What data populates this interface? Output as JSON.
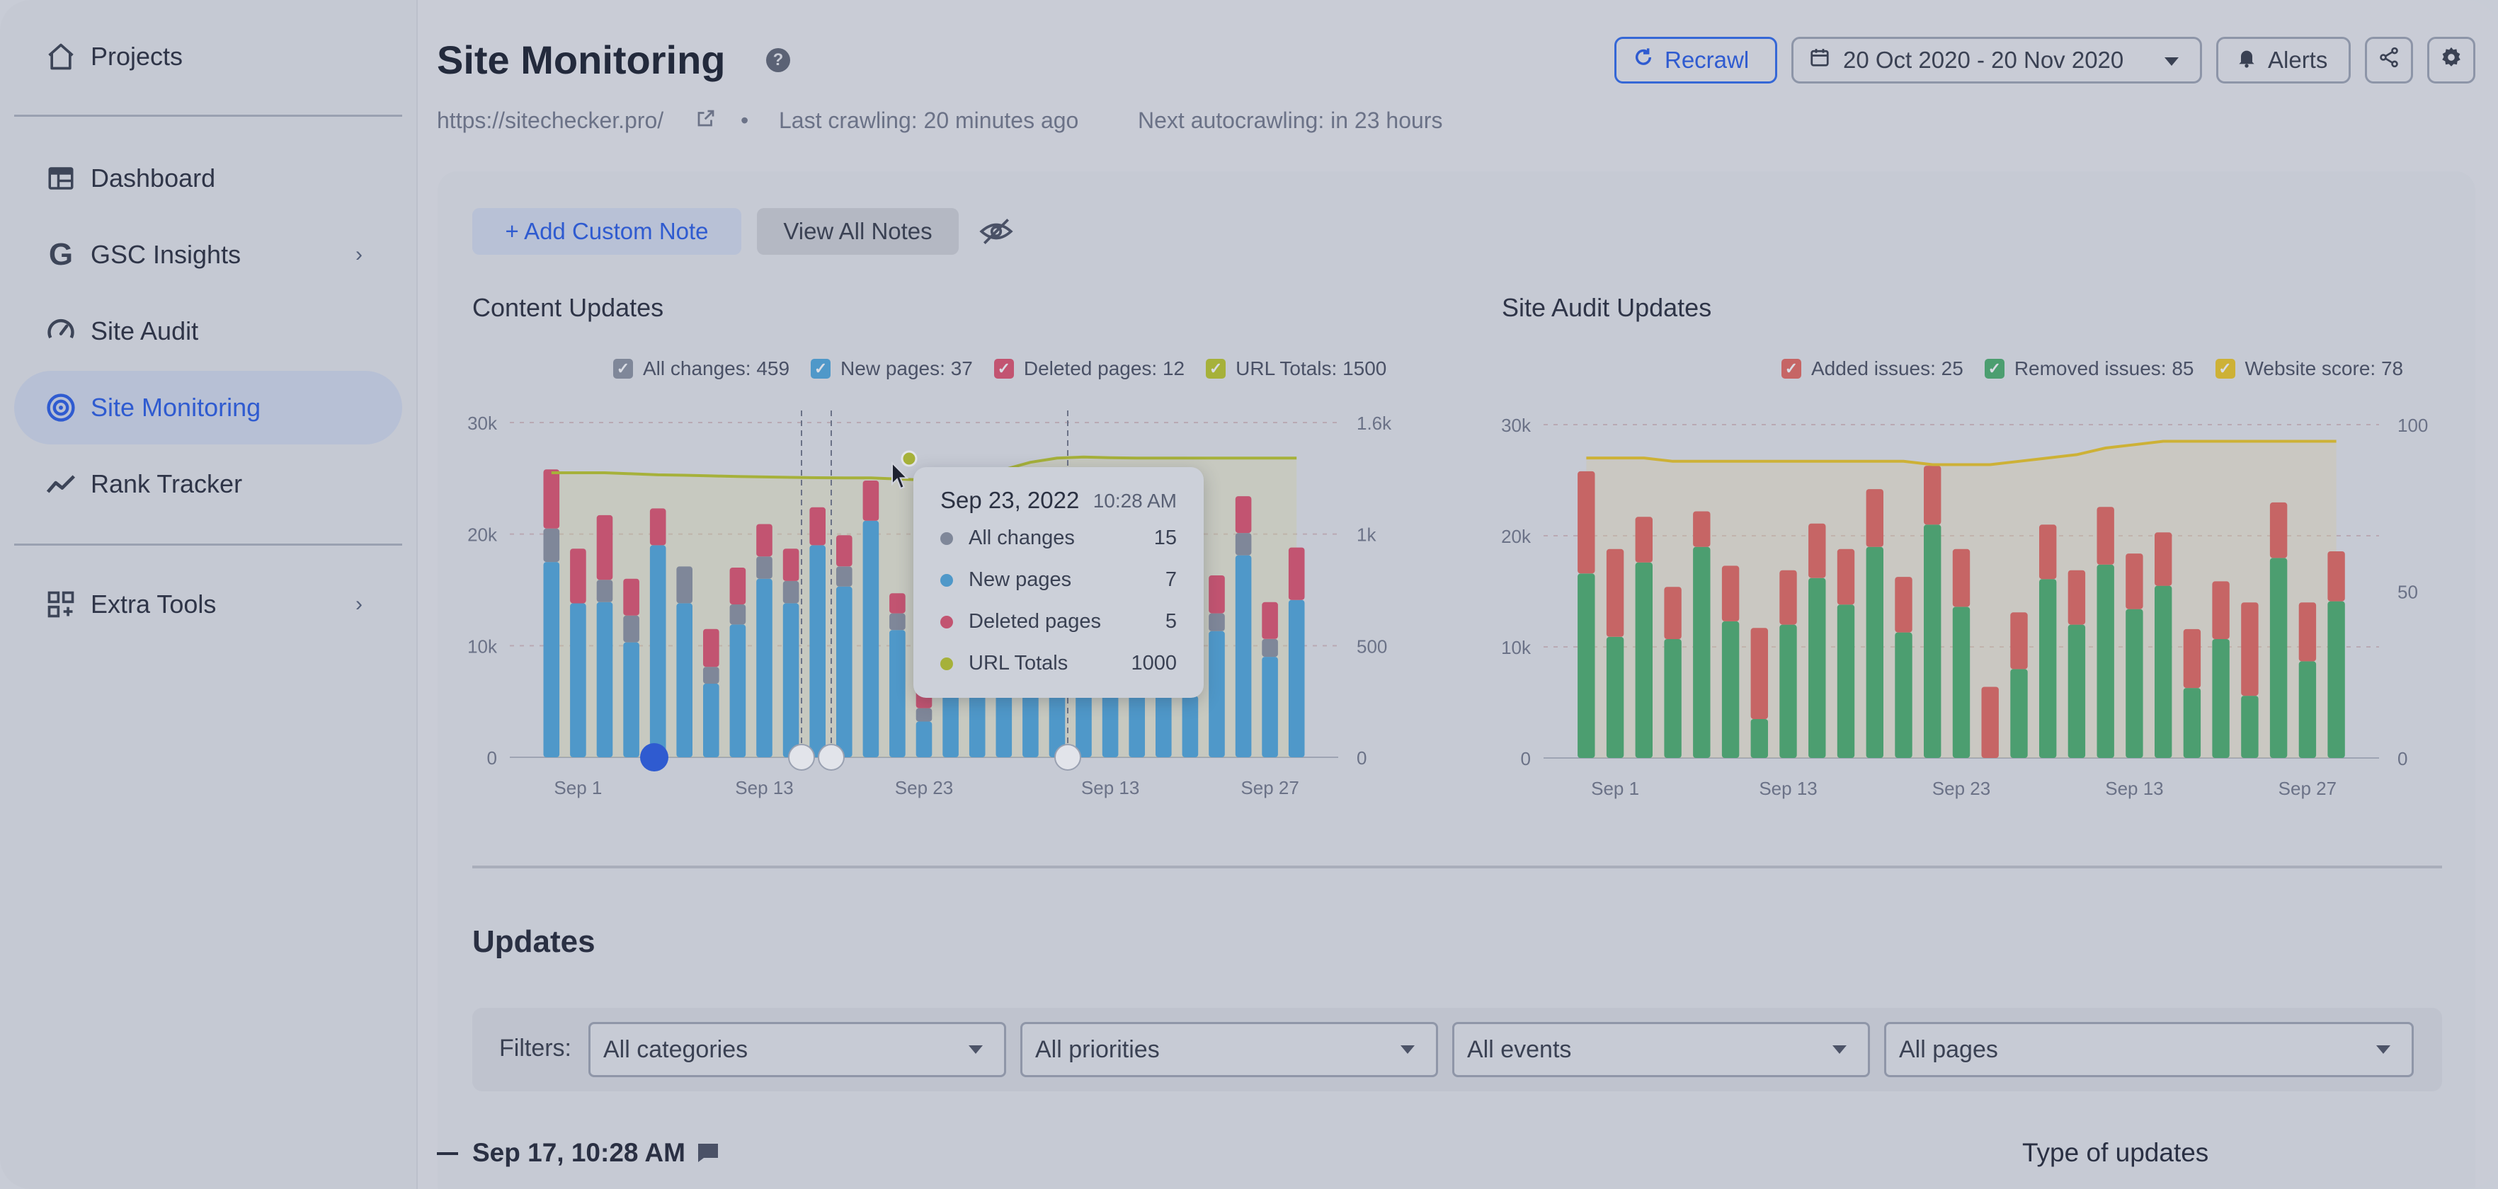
{
  "sidebar": {
    "projects": "Projects",
    "items": [
      {
        "label": "Dashboard"
      },
      {
        "label": "GSC Insights"
      },
      {
        "label": "Site Audit"
      },
      {
        "label": "Site Monitoring"
      },
      {
        "label": "Rank Tracker"
      }
    ],
    "extra_tools": "Extra Tools"
  },
  "header": {
    "title": "Site Monitoring",
    "help_glyph": "?",
    "url": "https://sitechecker.pro/",
    "bullet": "•",
    "last_crawling": "Last crawling: 20 minutes ago",
    "next_autocrawling": "Next autocrawling: in 23 hours",
    "recrawl_label": "Recrawl",
    "date_range": "20 Oct 2020 - 20 Nov 2020",
    "alerts_label": "Alerts"
  },
  "notes": {
    "add_label": "+ Add Custom Note",
    "view_label": "View All Notes"
  },
  "colors": {
    "accent": "#2f5bd0",
    "new_pages": "#4f98c9",
    "all_changes": "#7f8799",
    "deleted_pages": "#c25471",
    "url_totals": "#a6b13a",
    "added_issues": "#c66565",
    "removed_issues": "#4c9e70",
    "website_score": "#cdb136"
  },
  "content_chart": {
    "title": "Content Updates",
    "legend": [
      "All changes: 459",
      "New pages: 37",
      "Deleted pages: 12",
      "URL Totals: 1500"
    ],
    "tooltip": {
      "date": "Sep 23, 2022",
      "time": "10:28 AM",
      "rows": [
        {
          "label": "All changes",
          "value": "15"
        },
        {
          "label": "New pages",
          "value": "7"
        },
        {
          "label": "Deleted pages",
          "value": "5"
        },
        {
          "label": "URL Totals",
          "value": "1000"
        }
      ]
    }
  },
  "audit_chart": {
    "title": "Site Audit Updates",
    "legend": [
      "Added issues: 25",
      "Removed issues: 85",
      "Website score: 78"
    ]
  },
  "chart_data": [
    {
      "type": "bar",
      "title": "Content Updates",
      "x_tick_labels": [
        "Sep 1",
        "Sep 13",
        "Sep 23",
        "Sep 13",
        "Sep 27"
      ],
      "y_left_ticks": [
        "0",
        "10k",
        "20k",
        "30k"
      ],
      "y_right_ticks": [
        "0",
        "500",
        "1k",
        "1.6k"
      ],
      "ylim": [
        0,
        30000
      ],
      "y2lim": [
        0,
        1600
      ],
      "series": [
        {
          "name": "New pages",
          "values": [
            17500,
            13800,
            13900,
            10300,
            19000,
            13800,
            6600,
            11900,
            16000,
            13800,
            19000,
            15300,
            21200,
            11400,
            3200,
            14400,
            11000,
            11900,
            18400,
            12600,
            12100,
            11600,
            13900,
            10900,
            5500,
            11300,
            18100,
            9000,
            14100
          ]
        },
        {
          "name": "All changes",
          "values": [
            3000,
            0,
            2000,
            2400,
            0,
            3300,
            1500,
            1800,
            2000,
            2000,
            0,
            1800,
            0,
            1500,
            1200,
            1300,
            1500,
            1200,
            1300,
            1800,
            1700,
            1200,
            1300,
            1400,
            1400,
            1600,
            2000,
            1600,
            0
          ]
        },
        {
          "name": "Deleted pages",
          "values": [
            5300,
            4900,
            5800,
            3300,
            3300,
            0,
            3400,
            3300,
            2900,
            2900,
            3400,
            2800,
            3600,
            1800,
            2100,
            2300,
            3400,
            3000,
            3000,
            3000,
            2200,
            3200,
            2900,
            3100,
            8400,
            3400,
            3300,
            3300,
            4700
          ]
        },
        {
          "name": "URL Totals",
          "values": [
            1360,
            1360,
            1360,
            1355,
            1350,
            1348,
            1345,
            1342,
            1340,
            1338,
            1336,
            1335,
            1335,
            1330,
            1325,
            1330,
            1345,
            1375,
            1410,
            1430,
            1435,
            1432,
            1430,
            1430,
            1430,
            1430,
            1430,
            1430,
            1430
          ]
        }
      ]
    },
    {
      "type": "bar",
      "title": "Site Audit Updates",
      "x_tick_labels": [
        "Sep 1",
        "Sep 13",
        "Sep 23",
        "Sep 13",
        "Sep 27"
      ],
      "y_left_ticks": [
        "0",
        "10k",
        "20k",
        "30k"
      ],
      "y_right_ticks": [
        "0",
        "50",
        "100"
      ],
      "ylim": [
        0,
        30000
      ],
      "y2lim": [
        0,
        100
      ],
      "series": [
        {
          "name": "Removed issues",
          "values": [
            16600,
            10900,
            17600,
            10700,
            19000,
            12300,
            3500,
            12000,
            16200,
            13800,
            19000,
            11300,
            21000,
            13600,
            0,
            8000,
            16100,
            12000,
            17400,
            13400,
            15500,
            6300,
            10700,
            5600,
            18000,
            8700,
            14100
          ]
        },
        {
          "name": "Added issues",
          "values": [
            9200,
            7900,
            4100,
            4700,
            3200,
            5000,
            8200,
            4900,
            4900,
            5000,
            5200,
            5000,
            5300,
            5200,
            6400,
            5100,
            4900,
            4900,
            5200,
            5000,
            4800,
            5300,
            5200,
            8400,
            5000,
            5300,
            4500
          ]
        },
        {
          "name": "Website score",
          "values": [
            90,
            90,
            90,
            89,
            89,
            89,
            89,
            89,
            89,
            89,
            89,
            89,
            88,
            88,
            88,
            89,
            90,
            91,
            93,
            94,
            95,
            95,
            95,
            95,
            95,
            95,
            95
          ]
        }
      ]
    }
  ],
  "updates": {
    "title": "Updates",
    "filters_label": "Filters:",
    "filters": [
      "All categories",
      "All priorities",
      "All events",
      "All pages"
    ],
    "entry_date": "Sep 17, 10:28 AM",
    "type_of_updates": "Type of updates"
  }
}
